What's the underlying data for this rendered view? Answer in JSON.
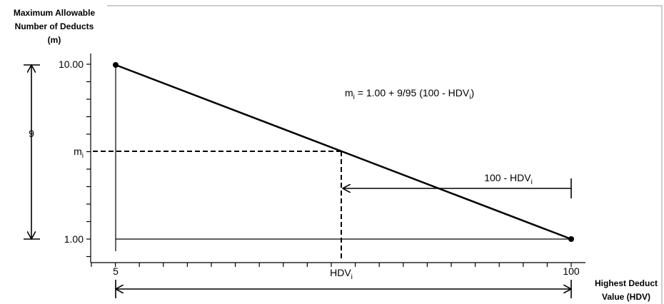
{
  "y_axis": {
    "title": [
      "Maximum Allowable",
      "Number of Deducts",
      "(m)"
    ],
    "top_label": "10.00",
    "bottom_label": "1.00",
    "mi_label": [
      "m",
      "i"
    ]
  },
  "x_axis": {
    "title": [
      "Highest Deduct",
      "Value (HDV)"
    ],
    "left_label": "5",
    "right_label": "100",
    "hdv_label": [
      "HDV",
      "i"
    ]
  },
  "span_label": "9",
  "formula": [
    "m",
    "i",
    " = 1.00 + 9/95 (100 - HDV",
    "i",
    ")"
  ],
  "difference_label": [
    "100 - HDV",
    "i"
  ]
}
